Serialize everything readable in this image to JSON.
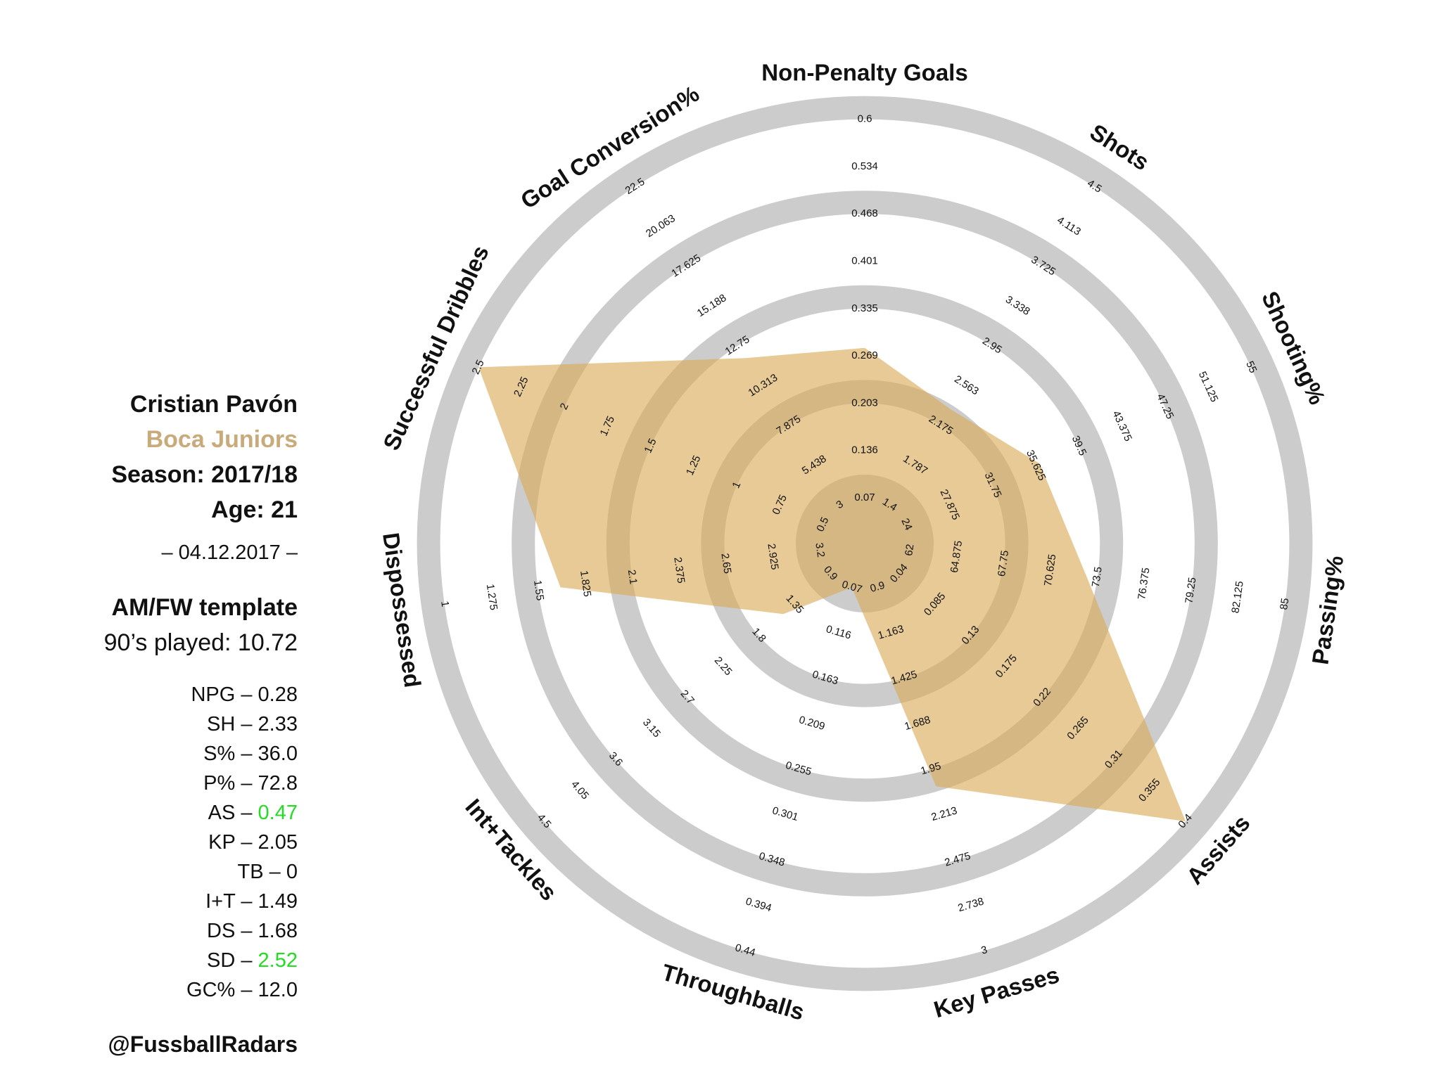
{
  "player": {
    "name": "Cristian Pavón",
    "team": "Boca Juniors",
    "season": "Season: 2017/18",
    "age": "Age: 21",
    "date": "– 04.12.2017 –",
    "template": "AM/FW template",
    "played": "90’s played: 10.72",
    "handle": "@FussballRadars"
  },
  "stats": [
    {
      "label": "NPG – ",
      "value": "0.28",
      "highlight": false
    },
    {
      "label": "SH – ",
      "value": "2.33",
      "highlight": false
    },
    {
      "label": "S% – ",
      "value": "36.0",
      "highlight": false
    },
    {
      "label": "P% – ",
      "value": "72.8",
      "highlight": false
    },
    {
      "label": "AS – ",
      "value": "0.47",
      "highlight": true
    },
    {
      "label": "KP – ",
      "value": "2.05",
      "highlight": false
    },
    {
      "label": "TB – ",
      "value": "0",
      "highlight": false
    },
    {
      "label": "I+T – ",
      "value": "1.49",
      "highlight": false
    },
    {
      "label": "DS – ",
      "value": "1.68",
      "highlight": false
    },
    {
      "label": "SD – ",
      "value": "2.52",
      "highlight": true
    },
    {
      "label": "GC% – ",
      "value": "12.0",
      "highlight": false
    }
  ],
  "colors": {
    "ring": "#cccccc",
    "fill": "#d9a955",
    "highlight": "#22dd22",
    "team": "#c9aa7a"
  },
  "chart_data": {
    "type": "radar",
    "title": "",
    "axes": [
      {
        "name": "Non-Penalty Goals",
        "ticks": [
          "0.07",
          "0.136",
          "0.203",
          "0.269",
          "0.335",
          "0.401",
          "0.468",
          "0.534",
          "0.6"
        ],
        "value": 0.28
      },
      {
        "name": "Shots",
        "ticks": [
          "1.4",
          "1.787",
          "2.175",
          "2.563",
          "2.95",
          "3.338",
          "3.725",
          "4.113",
          "4.5"
        ],
        "value": 2.33
      },
      {
        "name": "Shooting%",
        "ticks": [
          "24",
          "27.875",
          "31.75",
          "35.625",
          "39.5",
          "43.375",
          "47.25",
          "51.125",
          "55"
        ],
        "value": 36.0
      },
      {
        "name": "Passing%",
        "ticks": [
          "62",
          "64.875",
          "67.75",
          "70.625",
          "73.5",
          "76.375",
          "79.25",
          "82.125",
          "85"
        ],
        "value": 72.8
      },
      {
        "name": "Assists",
        "ticks": [
          "0.04",
          "0.085",
          "0.13",
          "0.175",
          "0.22",
          "0.265",
          "0.31",
          "0.355",
          "0.4"
        ],
        "value": 0.47
      },
      {
        "name": "Key Passes",
        "ticks": [
          "0.9",
          "1.163",
          "1.425",
          "1.688",
          "1.95",
          "2.213",
          "2.475",
          "2.738",
          "3"
        ],
        "value": 2.05
      },
      {
        "name": "Throughballs",
        "ticks": [
          "0.07",
          "0.116",
          "0.163",
          "0.209",
          "0.255",
          "0.301",
          "0.348",
          "0.394",
          "0.44"
        ],
        "value": 0
      },
      {
        "name": "Int+Tackles",
        "ticks": [
          "0.9",
          "1.35",
          "1.8",
          "2.25",
          "2.7",
          "3.15",
          "3.6",
          "4.05",
          "4.5"
        ],
        "value": 1.49
      },
      {
        "name": "Dispossessed",
        "ticks": [
          "3.2",
          "2.925",
          "2.65",
          "2.375",
          "2.1",
          "1.825",
          "1.55",
          "1.275",
          "1"
        ],
        "value": 1.68
      },
      {
        "name": "Successful Dribbles",
        "ticks": [
          "0.5",
          "0.75",
          "1",
          "1.25",
          "1.5",
          "1.75",
          "2",
          "2.25",
          "2.5"
        ],
        "value": 2.52
      },
      {
        "name": "Goal Conversion%",
        "ticks": [
          "3",
          "5.438",
          "7.875",
          "10.313",
          "12.75",
          "15.188",
          "17.625",
          "20.063",
          "22.5"
        ],
        "value": 12.0
      }
    ]
  }
}
